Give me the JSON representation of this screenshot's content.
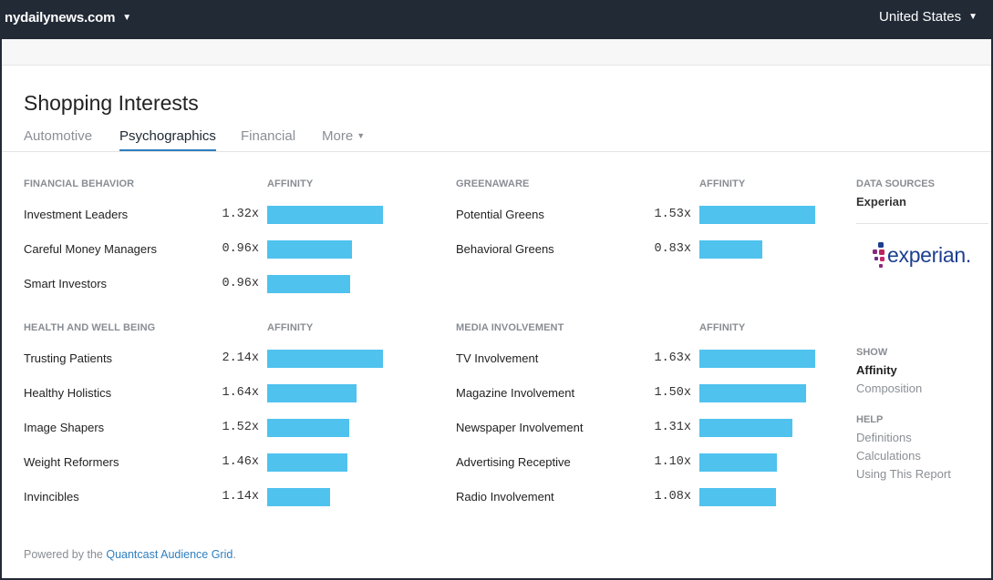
{
  "topbar": {
    "site": "nydailynews.com",
    "country": "United States"
  },
  "page": {
    "title": "Shopping Interests",
    "tabs": [
      {
        "label": "Automotive",
        "active": false
      },
      {
        "label": "Psychographics",
        "active": true
      },
      {
        "label": "Financial",
        "active": false
      },
      {
        "label": "More",
        "active": false
      }
    ]
  },
  "panels": {
    "financial_behavior": {
      "heading": "FINANCIAL BEHAVIOR",
      "metric_heading": "AFFINITY",
      "rows": [
        {
          "label": "Investment Leaders",
          "value": "1.32x",
          "fill": 1.0
        },
        {
          "label": "Careful Money Managers",
          "value": "0.96x",
          "fill": 0.73
        },
        {
          "label": "Smart Investors",
          "value": "0.96x",
          "fill": 0.72
        }
      ]
    },
    "health": {
      "heading": "HEALTH AND WELL BEING",
      "metric_heading": "AFFINITY",
      "rows": [
        {
          "label": "Trusting Patients",
          "value": "2.14x",
          "fill": 1.0
        },
        {
          "label": "Healthy Holistics",
          "value": "1.64x",
          "fill": 0.77
        },
        {
          "label": "Image Shapers",
          "value": "1.52x",
          "fill": 0.71
        },
        {
          "label": "Weight Reformers",
          "value": "1.46x",
          "fill": 0.69
        },
        {
          "label": "Invincibles",
          "value": "1.14x",
          "fill": 0.54
        }
      ]
    },
    "greenaware": {
      "heading": "GREENAWARE",
      "metric_heading": "AFFINITY",
      "rows": [
        {
          "label": "Potential Greens",
          "value": "1.53x",
          "fill": 1.0
        },
        {
          "label": "Behavioral Greens",
          "value": "0.83x",
          "fill": 0.54
        }
      ]
    },
    "media": {
      "heading": "MEDIA INVOLVEMENT",
      "metric_heading": "AFFINITY",
      "rows": [
        {
          "label": "TV Involvement",
          "value": "1.63x",
          "fill": 1.0
        },
        {
          "label": "Magazine Involvement",
          "value": "1.50x",
          "fill": 0.92
        },
        {
          "label": "Newspaper Involvement",
          "value": "1.31x",
          "fill": 0.8
        },
        {
          "label": "Advertising Receptive",
          "value": "1.10x",
          "fill": 0.67
        },
        {
          "label": "Radio Involvement",
          "value": "1.08x",
          "fill": 0.66
        }
      ]
    }
  },
  "sidebar": {
    "data_sources_heading": "DATA SOURCES",
    "data_source": "Experian",
    "logo_text": "experian.",
    "show_heading": "SHOW",
    "show_options": [
      "Affinity",
      "Composition"
    ],
    "help_heading": "HELP",
    "help_links": [
      "Definitions",
      "Calculations",
      "Using This Report"
    ]
  },
  "footer": {
    "prefix": "Powered by the ",
    "link": "Quantcast Audience Grid",
    "suffix": "."
  },
  "colors": {
    "topbar": "#222a36",
    "bar": "#4fc2ee",
    "accent": "#2f7fbf"
  }
}
